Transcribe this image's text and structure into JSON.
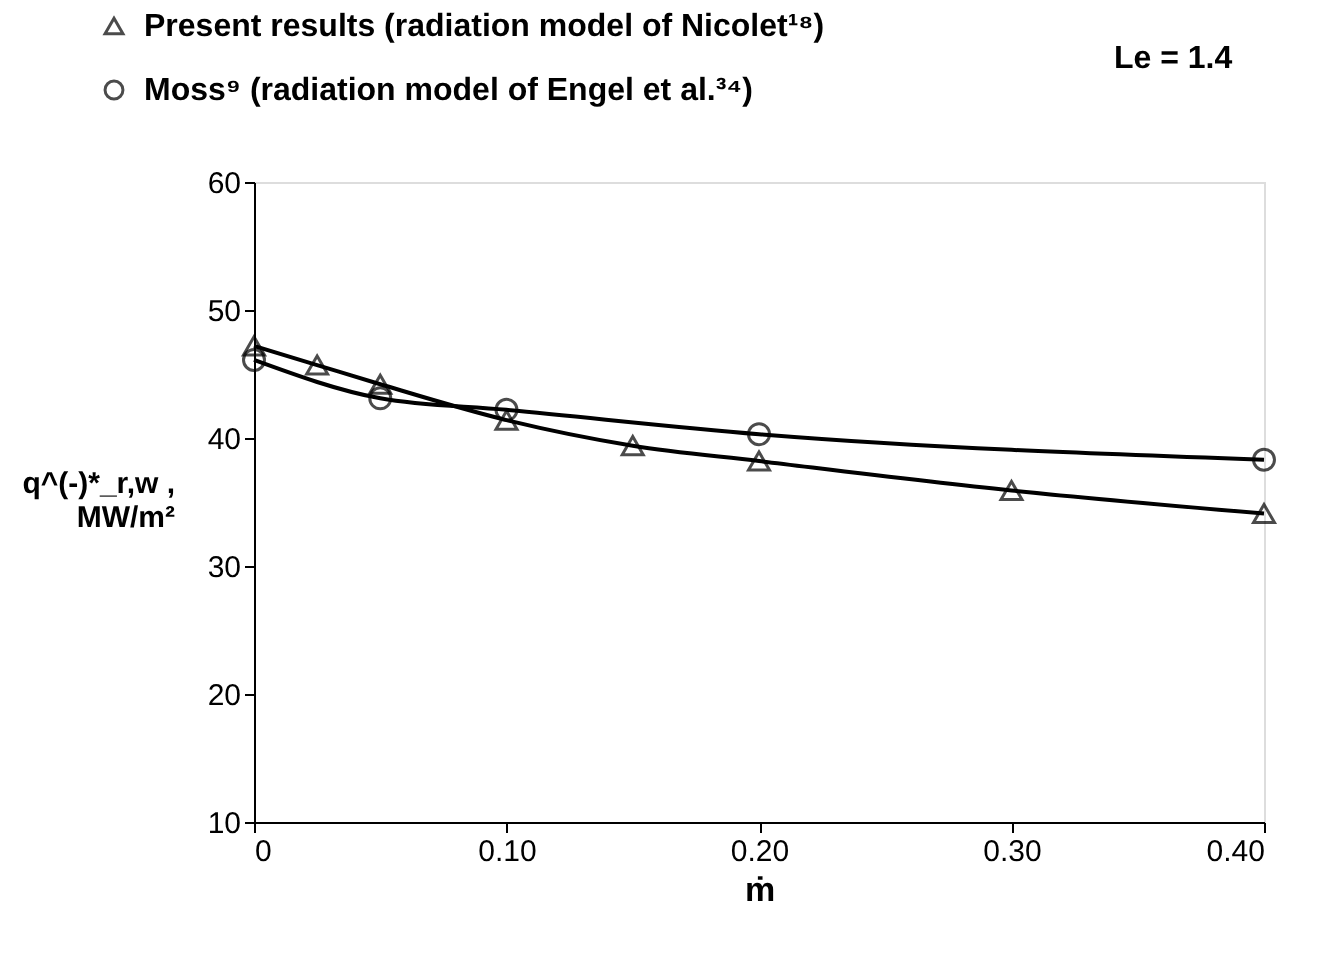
{
  "chart_data": {
    "type": "line",
    "xlabel": "ṁ",
    "ylabel": "q^(-)*_r,w , MW/m²",
    "xlim": [
      0,
      0.4
    ],
    "xticks": [
      {
        "value": 0,
        "label": "0"
      },
      {
        "value": 0.1,
        "label": "0.10"
      },
      {
        "value": 0.2,
        "label": "0.20"
      },
      {
        "value": 0.3,
        "label": "0.30"
      },
      {
        "value": 0.4,
        "label": "0.40"
      }
    ],
    "ylim": [
      10,
      60
    ],
    "yticks": [
      10,
      20,
      30,
      40,
      50,
      60
    ],
    "grid": false,
    "legend": "top",
    "line_style": "solid",
    "annotations": [
      "Le = 1.4"
    ],
    "series": [
      {
        "name": "Present results (radiation model of Nicolet¹⁸)",
        "color": "#000000",
        "marker": "triangle",
        "x": [
          0,
          0.025,
          0.05,
          0.1,
          0.15,
          0.2,
          0.3,
          0.4
        ],
        "values": [
          47.2,
          45.7,
          44.2,
          41.4,
          39.4,
          38.2,
          35.9,
          34.1
        ]
      },
      {
        "name": "Moss⁹ (radiation model of Engel et al.³⁴)",
        "color": "#000000",
        "marker": "circle",
        "x": [
          0,
          0.05,
          0.1,
          0.2,
          0.4
        ],
        "values": [
          46.1,
          43.1,
          42.2,
          40.3,
          38.3
        ]
      }
    ]
  }
}
